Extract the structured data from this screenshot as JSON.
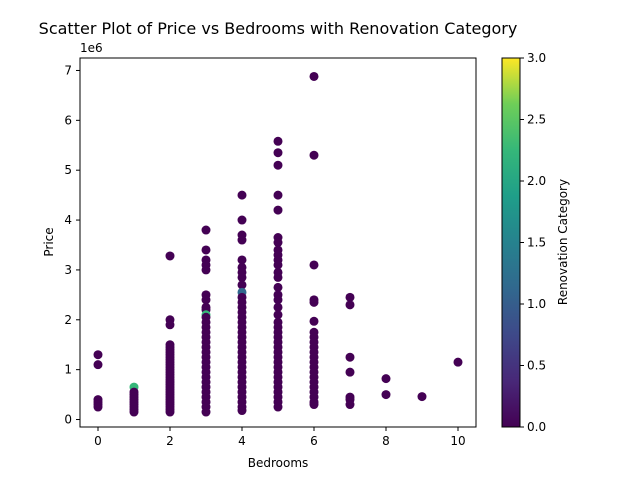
{
  "chart_data": {
    "type": "scatter",
    "title": "Scatter Plot of Price vs Bedrooms with Renovation Category",
    "xlabel": "Bedrooms",
    "ylabel": "Price",
    "y_offset_label": "1e6",
    "xlim": [
      -0.5,
      10.5
    ],
    "ylim": [
      -0.15,
      7.25
    ],
    "y_unit_multiplier": 1000000,
    "xticks": [
      "0",
      "2",
      "4",
      "6",
      "8",
      "10"
    ],
    "yticks": [
      "0",
      "1",
      "2",
      "3",
      "4",
      "5",
      "6",
      "7"
    ],
    "grid": false,
    "colorbar": {
      "label": "Renovation Category",
      "range": [
        0.0,
        3.0
      ],
      "ticks": [
        "0.0",
        "0.5",
        "1.0",
        "1.5",
        "2.0",
        "2.5",
        "3.0"
      ],
      "colormap": "viridis"
    },
    "point_colors": {
      "0": "#440154",
      "1": "#31688e",
      "2": "#35b779",
      "3": "#fde725"
    },
    "points": [
      {
        "x": 0,
        "y": 1.3,
        "c": 0
      },
      {
        "x": 0,
        "y": 1.1,
        "c": 0
      },
      {
        "x": 0,
        "y": 0.4,
        "c": 0
      },
      {
        "x": 0,
        "y": 0.35,
        "c": 0
      },
      {
        "x": 0,
        "y": 0.3,
        "c": 0
      },
      {
        "x": 0,
        "y": 0.25,
        "c": 0
      },
      {
        "x": 1,
        "y": 0.65,
        "c": 2
      },
      {
        "x": 1,
        "y": 0.55,
        "c": 0
      },
      {
        "x": 1,
        "y": 0.5,
        "c": 0
      },
      {
        "x": 1,
        "y": 0.45,
        "c": 0
      },
      {
        "x": 1,
        "y": 0.4,
        "c": 0
      },
      {
        "x": 1,
        "y": 0.35,
        "c": 0
      },
      {
        "x": 1,
        "y": 0.3,
        "c": 0
      },
      {
        "x": 1,
        "y": 0.25,
        "c": 0
      },
      {
        "x": 1,
        "y": 0.2,
        "c": 0
      },
      {
        "x": 1,
        "y": 0.15,
        "c": 0
      },
      {
        "x": 2,
        "y": 3.28,
        "c": 0
      },
      {
        "x": 2,
        "y": 2.0,
        "c": 0
      },
      {
        "x": 2,
        "y": 1.9,
        "c": 0
      },
      {
        "x": 2,
        "y": 1.5,
        "c": 0
      },
      {
        "x": 2,
        "y": 1.45,
        "c": 0
      },
      {
        "x": 2,
        "y": 1.4,
        "c": 0
      },
      {
        "x": 2,
        "y": 1.35,
        "c": 0
      },
      {
        "x": 2,
        "y": 1.3,
        "c": 0
      },
      {
        "x": 2,
        "y": 1.25,
        "c": 0
      },
      {
        "x": 2,
        "y": 1.2,
        "c": 0
      },
      {
        "x": 2,
        "y": 1.15,
        "c": 0
      },
      {
        "x": 2,
        "y": 1.1,
        "c": 0
      },
      {
        "x": 2,
        "y": 1.05,
        "c": 0
      },
      {
        "x": 2,
        "y": 1.0,
        "c": 0
      },
      {
        "x": 2,
        "y": 0.95,
        "c": 0
      },
      {
        "x": 2,
        "y": 0.9,
        "c": 0
      },
      {
        "x": 2,
        "y": 0.85,
        "c": 0
      },
      {
        "x": 2,
        "y": 0.8,
        "c": 0
      },
      {
        "x": 2,
        "y": 0.75,
        "c": 0
      },
      {
        "x": 2,
        "y": 0.7,
        "c": 0
      },
      {
        "x": 2,
        "y": 0.65,
        "c": 0
      },
      {
        "x": 2,
        "y": 0.6,
        "c": 0
      },
      {
        "x": 2,
        "y": 0.55,
        "c": 0
      },
      {
        "x": 2,
        "y": 0.5,
        "c": 0
      },
      {
        "x": 2,
        "y": 0.45,
        "c": 0
      },
      {
        "x": 2,
        "y": 0.4,
        "c": 0
      },
      {
        "x": 2,
        "y": 0.35,
        "c": 0
      },
      {
        "x": 2,
        "y": 0.3,
        "c": 0
      },
      {
        "x": 2,
        "y": 0.25,
        "c": 0
      },
      {
        "x": 2,
        "y": 0.2,
        "c": 0
      },
      {
        "x": 2,
        "y": 0.15,
        "c": 0
      },
      {
        "x": 3,
        "y": 3.8,
        "c": 0
      },
      {
        "x": 3,
        "y": 3.4,
        "c": 0
      },
      {
        "x": 3,
        "y": 3.2,
        "c": 0
      },
      {
        "x": 3,
        "y": 3.1,
        "c": 0
      },
      {
        "x": 3,
        "y": 3.0,
        "c": 0
      },
      {
        "x": 3,
        "y": 2.5,
        "c": 0
      },
      {
        "x": 3,
        "y": 2.4,
        "c": 0
      },
      {
        "x": 3,
        "y": 2.25,
        "c": 0
      },
      {
        "x": 3,
        "y": 2.2,
        "c": 0
      },
      {
        "x": 3,
        "y": 2.1,
        "c": 2
      },
      {
        "x": 3,
        "y": 2.05,
        "c": 0
      },
      {
        "x": 3,
        "y": 1.95,
        "c": 0
      },
      {
        "x": 3,
        "y": 1.85,
        "c": 0
      },
      {
        "x": 3,
        "y": 1.75,
        "c": 0
      },
      {
        "x": 3,
        "y": 1.65,
        "c": 0
      },
      {
        "x": 3,
        "y": 1.55,
        "c": 0
      },
      {
        "x": 3,
        "y": 1.45,
        "c": 0
      },
      {
        "x": 3,
        "y": 1.35,
        "c": 0
      },
      {
        "x": 3,
        "y": 1.25,
        "c": 0
      },
      {
        "x": 3,
        "y": 1.15,
        "c": 0
      },
      {
        "x": 3,
        "y": 1.05,
        "c": 0
      },
      {
        "x": 3,
        "y": 0.95,
        "c": 0
      },
      {
        "x": 3,
        "y": 0.85,
        "c": 0
      },
      {
        "x": 3,
        "y": 0.75,
        "c": 0
      },
      {
        "x": 3,
        "y": 0.65,
        "c": 0
      },
      {
        "x": 3,
        "y": 0.55,
        "c": 0
      },
      {
        "x": 3,
        "y": 0.45,
        "c": 0
      },
      {
        "x": 3,
        "y": 0.35,
        "c": 0
      },
      {
        "x": 3,
        "y": 0.25,
        "c": 0
      },
      {
        "x": 3,
        "y": 0.15,
        "c": 0
      },
      {
        "x": 4,
        "y": 4.5,
        "c": 0
      },
      {
        "x": 4,
        "y": 4.0,
        "c": 0
      },
      {
        "x": 4,
        "y": 3.7,
        "c": 0
      },
      {
        "x": 4,
        "y": 3.6,
        "c": 0
      },
      {
        "x": 4,
        "y": 3.2,
        "c": 0
      },
      {
        "x": 4,
        "y": 3.05,
        "c": 0
      },
      {
        "x": 4,
        "y": 2.95,
        "c": 0
      },
      {
        "x": 4,
        "y": 2.85,
        "c": 0
      },
      {
        "x": 4,
        "y": 2.7,
        "c": 0
      },
      {
        "x": 4,
        "y": 2.55,
        "c": 1
      },
      {
        "x": 4,
        "y": 2.45,
        "c": 0
      },
      {
        "x": 4,
        "y": 2.35,
        "c": 0
      },
      {
        "x": 4,
        "y": 2.25,
        "c": 0
      },
      {
        "x": 4,
        "y": 2.15,
        "c": 0
      },
      {
        "x": 4,
        "y": 2.05,
        "c": 0
      },
      {
        "x": 4,
        "y": 1.95,
        "c": 0
      },
      {
        "x": 4,
        "y": 1.85,
        "c": 0
      },
      {
        "x": 4,
        "y": 1.75,
        "c": 0
      },
      {
        "x": 4,
        "y": 1.65,
        "c": 0
      },
      {
        "x": 4,
        "y": 1.55,
        "c": 0
      },
      {
        "x": 4,
        "y": 1.45,
        "c": 0
      },
      {
        "x": 4,
        "y": 1.35,
        "c": 0
      },
      {
        "x": 4,
        "y": 1.25,
        "c": 0
      },
      {
        "x": 4,
        "y": 1.15,
        "c": 0
      },
      {
        "x": 4,
        "y": 1.05,
        "c": 0
      },
      {
        "x": 4,
        "y": 0.95,
        "c": 0
      },
      {
        "x": 4,
        "y": 0.85,
        "c": 0
      },
      {
        "x": 4,
        "y": 0.75,
        "c": 0
      },
      {
        "x": 4,
        "y": 0.65,
        "c": 0
      },
      {
        "x": 4,
        "y": 0.55,
        "c": 0
      },
      {
        "x": 4,
        "y": 0.45,
        "c": 0
      },
      {
        "x": 4,
        "y": 0.35,
        "c": 0
      },
      {
        "x": 4,
        "y": 0.25,
        "c": 0
      },
      {
        "x": 4,
        "y": 0.18,
        "c": 0
      },
      {
        "x": 5,
        "y": 5.58,
        "c": 0
      },
      {
        "x": 5,
        "y": 5.35,
        "c": 0
      },
      {
        "x": 5,
        "y": 5.1,
        "c": 0
      },
      {
        "x": 5,
        "y": 4.5,
        "c": 0
      },
      {
        "x": 5,
        "y": 4.2,
        "c": 0
      },
      {
        "x": 5,
        "y": 3.65,
        "c": 0
      },
      {
        "x": 5,
        "y": 3.55,
        "c": 0
      },
      {
        "x": 5,
        "y": 3.4,
        "c": 0
      },
      {
        "x": 5,
        "y": 3.3,
        "c": 0
      },
      {
        "x": 5,
        "y": 3.2,
        "c": 0
      },
      {
        "x": 5,
        "y": 3.1,
        "c": 0
      },
      {
        "x": 5,
        "y": 2.95,
        "c": 0
      },
      {
        "x": 5,
        "y": 2.85,
        "c": 0
      },
      {
        "x": 5,
        "y": 2.65,
        "c": 0
      },
      {
        "x": 5,
        "y": 2.5,
        "c": 0
      },
      {
        "x": 5,
        "y": 2.4,
        "c": 0
      },
      {
        "x": 5,
        "y": 2.25,
        "c": 0
      },
      {
        "x": 5,
        "y": 2.1,
        "c": 0
      },
      {
        "x": 5,
        "y": 1.95,
        "c": 0
      },
      {
        "x": 5,
        "y": 1.85,
        "c": 0
      },
      {
        "x": 5,
        "y": 1.75,
        "c": 0
      },
      {
        "x": 5,
        "y": 1.65,
        "c": 0
      },
      {
        "x": 5,
        "y": 1.55,
        "c": 0
      },
      {
        "x": 5,
        "y": 1.45,
        "c": 0
      },
      {
        "x": 5,
        "y": 1.35,
        "c": 0
      },
      {
        "x": 5,
        "y": 1.25,
        "c": 0
      },
      {
        "x": 5,
        "y": 1.15,
        "c": 0
      },
      {
        "x": 5,
        "y": 1.05,
        "c": 0
      },
      {
        "x": 5,
        "y": 0.95,
        "c": 0
      },
      {
        "x": 5,
        "y": 0.85,
        "c": 0
      },
      {
        "x": 5,
        "y": 0.75,
        "c": 0
      },
      {
        "x": 5,
        "y": 0.65,
        "c": 0
      },
      {
        "x": 5,
        "y": 0.55,
        "c": 0
      },
      {
        "x": 5,
        "y": 0.45,
        "c": 0
      },
      {
        "x": 5,
        "y": 0.35,
        "c": 0
      },
      {
        "x": 5,
        "y": 0.25,
        "c": 0
      },
      {
        "x": 6,
        "y": 6.88,
        "c": 0
      },
      {
        "x": 6,
        "y": 5.3,
        "c": 0
      },
      {
        "x": 6,
        "y": 3.1,
        "c": 0
      },
      {
        "x": 6,
        "y": 2.4,
        "c": 0
      },
      {
        "x": 6,
        "y": 2.35,
        "c": 0
      },
      {
        "x": 6,
        "y": 1.97,
        "c": 0
      },
      {
        "x": 6,
        "y": 1.75,
        "c": 0
      },
      {
        "x": 6,
        "y": 1.65,
        "c": 0
      },
      {
        "x": 6,
        "y": 1.55,
        "c": 0
      },
      {
        "x": 6,
        "y": 1.45,
        "c": 0
      },
      {
        "x": 6,
        "y": 1.35,
        "c": 0
      },
      {
        "x": 6,
        "y": 1.25,
        "c": 0
      },
      {
        "x": 6,
        "y": 1.15,
        "c": 0
      },
      {
        "x": 6,
        "y": 1.05,
        "c": 0
      },
      {
        "x": 6,
        "y": 0.95,
        "c": 0
      },
      {
        "x": 6,
        "y": 0.85,
        "c": 0
      },
      {
        "x": 6,
        "y": 0.75,
        "c": 0
      },
      {
        "x": 6,
        "y": 0.65,
        "c": 0
      },
      {
        "x": 6,
        "y": 0.55,
        "c": 0
      },
      {
        "x": 6,
        "y": 0.45,
        "c": 0
      },
      {
        "x": 6,
        "y": 0.35,
        "c": 0
      },
      {
        "x": 6,
        "y": 0.3,
        "c": 0
      },
      {
        "x": 7,
        "y": 2.45,
        "c": 0
      },
      {
        "x": 7,
        "y": 2.3,
        "c": 0
      },
      {
        "x": 7,
        "y": 1.25,
        "c": 0
      },
      {
        "x": 7,
        "y": 0.95,
        "c": 0
      },
      {
        "x": 7,
        "y": 0.45,
        "c": 0
      },
      {
        "x": 7,
        "y": 0.4,
        "c": 0
      },
      {
        "x": 7,
        "y": 0.3,
        "c": 0
      },
      {
        "x": 8,
        "y": 0.82,
        "c": 0
      },
      {
        "x": 8,
        "y": 0.5,
        "c": 0
      },
      {
        "x": 9,
        "y": 0.46,
        "c": 0
      },
      {
        "x": 10,
        "y": 1.15,
        "c": 0
      }
    ]
  }
}
